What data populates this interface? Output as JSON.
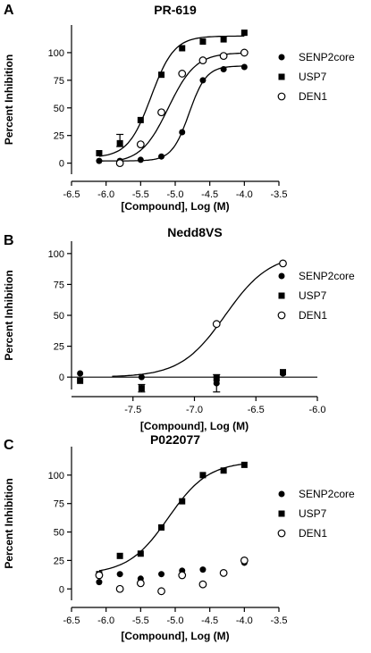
{
  "chart_data": [
    {
      "type": "scatter",
      "panel": "A",
      "title": "PR-619",
      "xlabel": "[Compound], Log (M)",
      "ylabel": "Percent Inhibition",
      "xlim": [
        -6.5,
        -3.5
      ],
      "xticks": [
        "-6.5",
        "-6.0",
        "-5.5",
        "-5.0",
        "-4.5",
        "-4.0",
        "-3.5"
      ],
      "xtick_values": [
        -6.5,
        -6.0,
        -5.5,
        -5.0,
        -4.5,
        -4.0,
        -3.5
      ],
      "ylim": [
        -10,
        125
      ],
      "yticks": [
        "0",
        "25",
        "50",
        "75",
        "100"
      ],
      "ytick_values": [
        0,
        25,
        50,
        75,
        100
      ],
      "grid": false,
      "legend_position": "right",
      "series": [
        {
          "name": "SENP2core",
          "marker": "filled-circle",
          "x": [
            -6.1,
            -5.8,
            -5.5,
            -5.2,
            -4.9,
            -4.6,
            -4.3,
            -4.0
          ],
          "y": [
            2,
            2,
            3,
            6,
            28,
            75,
            85,
            87
          ],
          "fit": {
            "bottom": 2,
            "top": 88,
            "logec50": -4.8,
            "hill": 3.5
          }
        },
        {
          "name": "USP7",
          "marker": "filled-square",
          "x": [
            -6.1,
            -5.8,
            -5.5,
            -5.2,
            -4.9,
            -4.6,
            -4.3,
            -4.0
          ],
          "y": [
            9,
            18,
            39,
            80,
            104,
            110,
            112,
            118
          ],
          "fit": {
            "bottom": 5,
            "top": 115,
            "logec50": -5.35,
            "hill": 2.6
          }
        },
        {
          "name": "DEN1",
          "marker": "open-circle",
          "x": [
            -6.1,
            -5.8,
            -5.5,
            -5.2,
            -4.9,
            -4.6,
            -4.3,
            -4.0
          ],
          "y": [
            null,
            0,
            17,
            46,
            81,
            93,
            97,
            100
          ],
          "fit": {
            "bottom": 0,
            "top": 100,
            "logec50": -5.1,
            "hill": 2.2
          }
        }
      ],
      "error_bars": [
        {
          "x": -5.8,
          "y": 20,
          "low": 15,
          "high": 26
        }
      ]
    },
    {
      "type": "scatter",
      "panel": "B",
      "title": "Nedd8VS",
      "xlabel": "[Compound], Log (M)",
      "ylabel": "Percent Inhibition",
      "xlim": [
        -8.0,
        -6.0
      ],
      "xticks": [
        "-7.5",
        "-7.0",
        "-6.5",
        "-6.0"
      ],
      "xtick_values": [
        -7.5,
        -7.0,
        -6.5,
        -6.0
      ],
      "ylim": [
        -10,
        110
      ],
      "yticks": [
        "0",
        "25",
        "50",
        "75",
        "100"
      ],
      "ytick_values": [
        0,
        25,
        50,
        75,
        100
      ],
      "grid": false,
      "legend_position": "right",
      "series": [
        {
          "name": "SENP2core",
          "marker": "filled-circle",
          "x": [
            -7.93,
            -7.43,
            -6.82,
            -6.28
          ],
          "y": [
            3,
            0,
            -5,
            3
          ],
          "fit": null
        },
        {
          "name": "USP7",
          "marker": "filled-square",
          "x": [
            -7.93,
            -7.43,
            -6.82,
            -6.28
          ],
          "y": [
            -3,
            -9,
            -1,
            4
          ],
          "fit": null
        },
        {
          "name": "DEN1",
          "marker": "open-circle",
          "x": [
            -6.82,
            -6.28
          ],
          "y": [
            43,
            92
          ],
          "fit": {
            "bottom": 0,
            "top": 100,
            "logec50": -6.75,
            "hill": 2.4
          }
        }
      ],
      "error_bars": [
        {
          "x": -6.82,
          "y": -5,
          "low": -12,
          "high": 2
        },
        {
          "x": -7.43,
          "y": -9,
          "low": -12,
          "high": -6
        }
      ]
    },
    {
      "type": "scatter",
      "panel": "C",
      "title": "P022077",
      "xlabel": "[Compound], Log (M)",
      "ylabel": "Percent Inhibition",
      "xlim": [
        -6.5,
        -3.5
      ],
      "xticks": [
        "-6.5",
        "-6.0",
        "-5.5",
        "-5.0",
        "-4.5",
        "-4.0",
        "-3.5"
      ],
      "xtick_values": [
        -6.5,
        -6.0,
        -5.5,
        -5.0,
        -4.5,
        -4.0,
        -3.5
      ],
      "ylim": [
        -10,
        125
      ],
      "yticks": [
        "0",
        "25",
        "50",
        "75",
        "100"
      ],
      "ytick_values": [
        0,
        25,
        50,
        75,
        100
      ],
      "grid": false,
      "legend_position": "right",
      "series": [
        {
          "name": "SENP2core",
          "marker": "filled-circle",
          "x": [
            -6.1,
            -5.8,
            -5.5,
            -5.2,
            -4.9,
            -4.6,
            -4.3,
            -4.0
          ],
          "y": [
            6,
            13,
            9,
            13,
            16,
            17,
            14,
            23
          ],
          "fit": null
        },
        {
          "name": "USP7",
          "marker": "filled-square",
          "x": [
            -6.1,
            -5.8,
            -5.5,
            -5.2,
            -4.9,
            -4.6,
            -4.3,
            -4.0
          ],
          "y": [
            13,
            29,
            31,
            54,
            77,
            100,
            104,
            109
          ],
          "fit": {
            "bottom": 13,
            "top": 112,
            "logec50": -5.1,
            "hill": 1.5
          }
        },
        {
          "name": "DEN1",
          "marker": "open-circle",
          "x": [
            -6.1,
            -5.8,
            -5.5,
            -5.2,
            -4.9,
            -4.6,
            -4.3,
            -4.0
          ],
          "y": [
            12,
            0,
            5,
            -2,
            12,
            4,
            14,
            25
          ],
          "fit": null
        }
      ],
      "error_bars": []
    }
  ]
}
